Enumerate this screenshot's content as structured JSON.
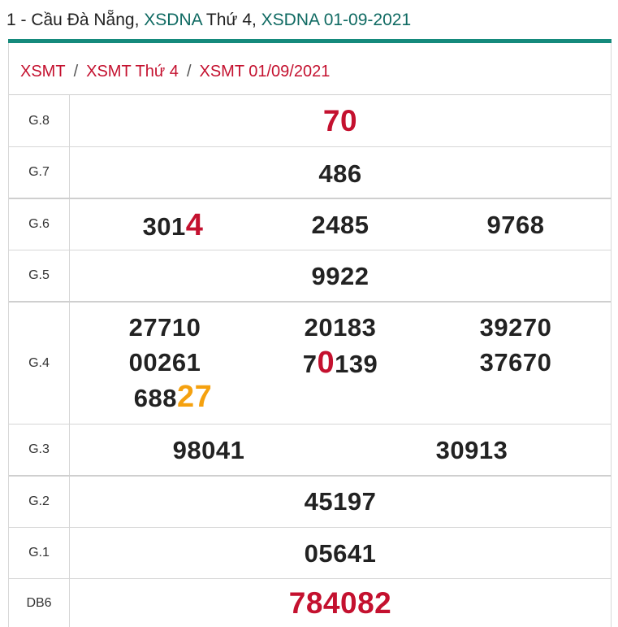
{
  "heading": {
    "prefix": "1 - Cầu Đà Nẵng, ",
    "link1": "XSDNA",
    "mid": " Thứ 4, ",
    "link2": "XSDNA 01-09-2021"
  },
  "breadcrumb": {
    "items": [
      "XSMT",
      "XSMT Thứ 4",
      "XSMT 01/09/2021"
    ],
    "separator": "/"
  },
  "colors": {
    "accent": "#158a7c",
    "red": "#c4112f",
    "orange": "#f5a10f",
    "link": "#0f6a62"
  },
  "results": {
    "g8": {
      "label": "G.8",
      "values": [
        "70"
      ]
    },
    "g7": {
      "label": "G.7",
      "values": [
        "486"
      ]
    },
    "g6": {
      "label": "G.6",
      "values": [
        {
          "normal": "301",
          "highlight": "4"
        },
        "2485",
        "9768"
      ]
    },
    "g5": {
      "label": "G.5",
      "values": [
        "9922"
      ]
    },
    "g4": {
      "label": "G.4",
      "values": [
        "27710",
        "20183",
        "39270",
        "00261",
        {
          "pre": "7",
          "highlight": "0",
          "post": "139"
        },
        "37670",
        {
          "normal": "688",
          "highlight": "27"
        }
      ]
    },
    "g3": {
      "label": "G.3",
      "values": [
        "98041",
        "30913"
      ]
    },
    "g2": {
      "label": "G.2",
      "values": [
        "45197"
      ]
    },
    "g1": {
      "label": "G.1",
      "values": [
        "05641"
      ]
    },
    "db": {
      "label": "DB6",
      "values": [
        "784082"
      ]
    }
  }
}
